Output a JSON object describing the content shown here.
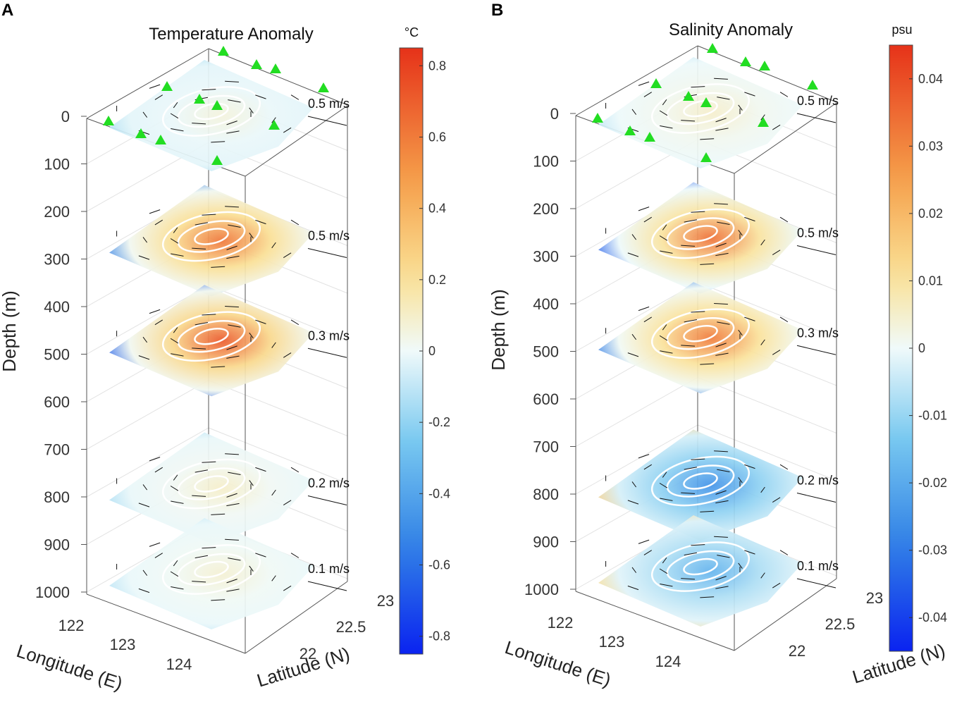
{
  "chart_data": [
    {
      "type": "3d-slice-contour",
      "panel": "A",
      "title": "Temperature Anomaly",
      "zlabel": "Depth (m)",
      "xlabel": "Longitude (E)",
      "ylabel": "Latitude (N)",
      "z_ticks": [
        "0",
        "100",
        "200",
        "300",
        "400",
        "500",
        "600",
        "700",
        "800",
        "900",
        "1000"
      ],
      "x_ticks": [
        "122",
        "123",
        "124"
      ],
      "y_ticks": [
        "22",
        "22.5",
        "23"
      ],
      "colorbar": {
        "unit": "°C",
        "range": [
          -0.85,
          0.85
        ],
        "ticks": [
          "0.8",
          "0.6",
          "0.4",
          "0.2",
          "0",
          "-0.2",
          "-0.4",
          "-0.6",
          "-0.8"
        ],
        "tick_values": [
          0.8,
          0.6,
          0.4,
          0.2,
          0,
          -0.2,
          -0.4,
          -0.6,
          -0.8
        ]
      },
      "slices": [
        {
          "depth": 0,
          "reference_vector": "0.5 m/s",
          "center_anomaly": 0.06,
          "edge_anomaly": -0.15
        },
        {
          "depth": 260,
          "reference_vector": "0.5 m/s",
          "center_anomaly": 0.62,
          "edge_anomaly": -0.55
        },
        {
          "depth": 470,
          "reference_vector": "0.3 m/s",
          "center_anomaly": 0.72,
          "edge_anomaly": -0.65
        },
        {
          "depth": 780,
          "reference_vector": "0.2 m/s",
          "center_anomaly": 0.1,
          "edge_anomaly": -0.15
        },
        {
          "depth": 960,
          "reference_vector": "0.1 m/s",
          "center_anomaly": 0.08,
          "edge_anomaly": -0.12
        }
      ],
      "station_marker_color": "#22dd22"
    },
    {
      "type": "3d-slice-contour",
      "panel": "B",
      "title": "Salinity Anomaly",
      "zlabel": "Depth (m)",
      "xlabel": "Longitude (E)",
      "ylabel": "Latitude (N)",
      "z_ticks": [
        "0",
        "100",
        "200",
        "300",
        "400",
        "500",
        "600",
        "700",
        "800",
        "900",
        "1000"
      ],
      "x_ticks": [
        "122",
        "123",
        "124"
      ],
      "y_ticks": [
        "22",
        "22.5",
        "23"
      ],
      "colorbar": {
        "unit": "psu",
        "range": [
          -0.045,
          0.045
        ],
        "ticks": [
          "0.04",
          "0.03",
          "0.02",
          "0.01",
          "0",
          "-0.01",
          "-0.02",
          "-0.03",
          "-0.04"
        ],
        "tick_values": [
          0.04,
          0.03,
          0.02,
          0.01,
          0,
          -0.01,
          -0.02,
          -0.03,
          -0.04
        ]
      },
      "slices": [
        {
          "depth": 0,
          "reference_vector": "0.5 m/s",
          "center_anomaly": 0.005,
          "edge_anomaly": -0.006
        },
        {
          "depth": 260,
          "reference_vector": "0.5 m/s",
          "center_anomaly": 0.034,
          "edge_anomaly": -0.035
        },
        {
          "depth": 470,
          "reference_vector": "0.3 m/s",
          "center_anomaly": 0.032,
          "edge_anomaly": -0.03
        },
        {
          "depth": 780,
          "reference_vector": "0.2 m/s",
          "center_anomaly": -0.025,
          "edge_anomaly": 0.015
        },
        {
          "depth": 960,
          "reference_vector": "0.1 m/s",
          "center_anomaly": -0.018,
          "edge_anomaly": 0.012
        }
      ],
      "station_marker_color": "#22dd22"
    }
  ]
}
